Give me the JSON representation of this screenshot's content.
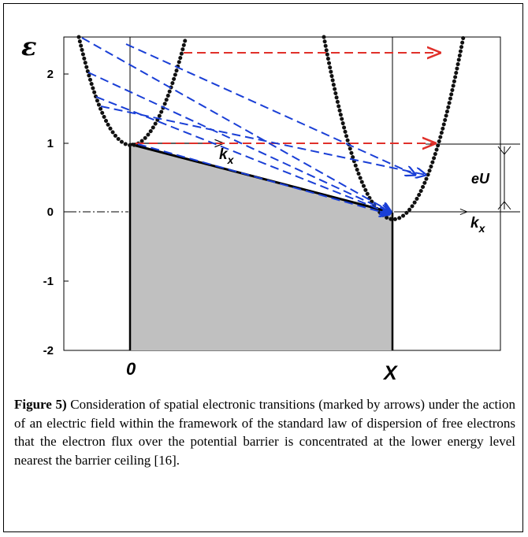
{
  "figure": {
    "y_axis_symbol": "ε",
    "y_ticks": [
      "2",
      "1",
      "0",
      "-1",
      "-2"
    ],
    "x_labels": {
      "origin": "0",
      "end": "X"
    },
    "annotations": {
      "kx_top": "k",
      "kx_top_sub": "x",
      "kx_bottom": "k",
      "kx_bottom_sub": "x",
      "eU": "eU"
    },
    "colors": {
      "blue_transitions": "#1a3fd6",
      "red_transitions": "#e0302a",
      "barrier_fill": "#c0c0c0",
      "axis": "#000000"
    }
  },
  "caption": {
    "label": "Figure 5)",
    "text": " Consideration of spatial electronic transitions (marked by arrows) under the action of an electric field within the framework of the standard law of dispersion of free electrons that the electron flux over the potential barrier is concentrated at the lower energy level nearest the barrier ceiling [16]."
  }
}
